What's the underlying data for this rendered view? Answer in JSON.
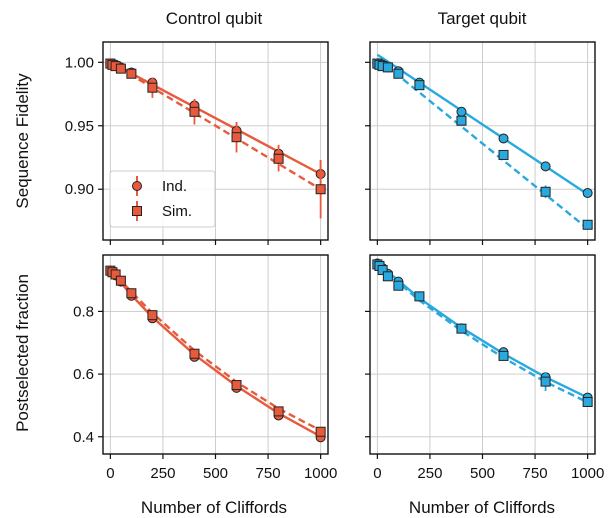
{
  "figure": {
    "col_titles": [
      "Control qubit",
      "Target qubit"
    ],
    "row_ylabels": [
      "Sequence Fidelity",
      "Postselected fraction"
    ],
    "xlabel": "Number of Cliffords",
    "legend": {
      "ind_label": "Ind.",
      "sim_label": "Sim."
    }
  },
  "chart_data": [
    {
      "type": "scatter",
      "panel": "top-left",
      "color": "#e85a3c",
      "xlim": [
        -35,
        1035
      ],
      "ylim": [
        0.86,
        1.016
      ],
      "xticks": [
        0,
        250,
        500,
        750,
        1000
      ],
      "yticks": [
        0.9,
        0.95,
        1.0
      ],
      "ytick_labels": [
        "0.90",
        "0.95",
        "1.00"
      ],
      "grid": true,
      "legend_position": "lower-left",
      "series": [
        {
          "key": "ind",
          "name": "Ind.",
          "marker": "circle",
          "line": "solid",
          "x": [
            0,
            10,
            25,
            50,
            100,
            200,
            400,
            600,
            800,
            1000
          ],
          "y": [
            0.999,
            0.999,
            0.998,
            0.996,
            0.992,
            0.984,
            0.966,
            0.946,
            0.928,
            0.912
          ],
          "err": [
            0.002,
            0.002,
            0.002,
            0.002,
            0.003,
            0.004,
            0.005,
            0.006,
            0.007,
            0.011
          ],
          "fit": [
            [
              0,
              1.0
            ],
            [
              1000,
              0.912
            ]
          ]
        },
        {
          "key": "sim",
          "name": "Sim.",
          "marker": "square",
          "line": "dashed",
          "x": [
            0,
            10,
            25,
            50,
            100,
            200,
            400,
            600,
            800,
            1000
          ],
          "y": [
            0.999,
            0.998,
            0.997,
            0.995,
            0.991,
            0.98,
            0.961,
            0.941,
            0.924,
            0.9
          ],
          "err": [
            0.002,
            0.002,
            0.002,
            0.003,
            0.003,
            0.008,
            0.01,
            0.012,
            0.01,
            0.023
          ],
          "fit": [
            [
              0,
              1.0
            ],
            [
              1000,
              0.9
            ]
          ]
        }
      ]
    },
    {
      "type": "scatter",
      "panel": "top-right",
      "color": "#29a9de",
      "xlim": [
        -35,
        1035
      ],
      "ylim": [
        0.86,
        1.016
      ],
      "xticks": [
        0,
        250,
        500,
        750,
        1000
      ],
      "yticks": [
        0.9,
        0.95,
        1.0
      ],
      "grid": true,
      "series": [
        {
          "key": "ind",
          "name": "Ind.",
          "marker": "circle",
          "line": "solid",
          "x": [
            0,
            10,
            25,
            50,
            100,
            200,
            400,
            600,
            800,
            1000
          ],
          "y": [
            0.999,
            0.999,
            0.998,
            0.996,
            0.993,
            0.984,
            0.961,
            0.94,
            0.918,
            0.897
          ],
          "err": [
            0.001,
            0.001,
            0.001,
            0.002,
            0.002,
            0.003,
            0.003,
            0.003,
            0.003,
            0.003
          ],
          "fit": [
            [
              0,
              1.006
            ],
            [
              1000,
              0.896
            ]
          ]
        },
        {
          "key": "sim",
          "name": "Sim.",
          "marker": "square",
          "line": "dashed",
          "x": [
            0,
            10,
            25,
            50,
            100,
            200,
            400,
            600,
            800,
            1000
          ],
          "y": [
            0.999,
            0.998,
            0.997,
            0.996,
            0.991,
            0.982,
            0.954,
            0.927,
            0.898,
            0.872
          ],
          "err": [
            0.001,
            0.001,
            0.001,
            0.002,
            0.002,
            0.003,
            0.003,
            0.003,
            0.005,
            0.003
          ],
          "fit": [
            [
              0,
              1.003
            ],
            [
              1000,
              0.869
            ]
          ]
        }
      ]
    },
    {
      "type": "scatter",
      "panel": "bottom-left",
      "color": "#e85a3c",
      "xlim": [
        -35,
        1035
      ],
      "ylim": [
        0.345,
        0.98
      ],
      "xticks": [
        0,
        250,
        500,
        750,
        1000
      ],
      "xtick_labels": [
        "0",
        "250",
        "500",
        "750",
        "1000"
      ],
      "yticks": [
        0.4,
        0.6,
        0.8
      ],
      "ytick_labels": [
        "0.4",
        "0.6",
        "0.8"
      ],
      "grid": true,
      "series": [
        {
          "key": "ind",
          "name": "Ind.",
          "marker": "circle",
          "line": "solid",
          "x": [
            0,
            10,
            25,
            50,
            100,
            200,
            400,
            600,
            800,
            1000
          ],
          "y": [
            0.93,
            0.925,
            0.915,
            0.895,
            0.85,
            0.778,
            0.655,
            0.556,
            0.468,
            0.398
          ],
          "err": [
            0.005,
            0.005,
            0.005,
            0.005,
            0.006,
            0.006,
            0.007,
            0.007,
            0.007,
            0.008
          ],
          "fit": [
            [
              0,
              0.932
            ],
            [
              100,
              0.852
            ],
            [
              200,
              0.782
            ],
            [
              400,
              0.662
            ],
            [
              600,
              0.562
            ],
            [
              800,
              0.475
            ],
            [
              1000,
              0.401
            ]
          ]
        },
        {
          "key": "sim",
          "name": "Sim.",
          "marker": "square",
          "line": "dashed",
          "x": [
            0,
            10,
            25,
            50,
            100,
            200,
            400,
            600,
            800,
            1000
          ],
          "y": [
            0.93,
            0.925,
            0.918,
            0.898,
            0.858,
            0.788,
            0.665,
            0.565,
            0.481,
            0.416
          ],
          "err": [
            0.005,
            0.005,
            0.005,
            0.005,
            0.006,
            0.006,
            0.007,
            0.007,
            0.007,
            0.008
          ],
          "fit": [
            [
              0,
              0.935
            ],
            [
              100,
              0.862
            ],
            [
              200,
              0.795
            ],
            [
              400,
              0.675
            ],
            [
              600,
              0.575
            ],
            [
              800,
              0.49
            ],
            [
              1000,
              0.42
            ]
          ]
        }
      ]
    },
    {
      "type": "scatter",
      "panel": "bottom-right",
      "color": "#29a9de",
      "xlim": [
        -35,
        1035
      ],
      "ylim": [
        0.345,
        0.98
      ],
      "xticks": [
        0,
        250,
        500,
        750,
        1000
      ],
      "xtick_labels": [
        "0",
        "250",
        "500",
        "750",
        "1000"
      ],
      "yticks": [
        0.4,
        0.6,
        0.8
      ],
      "grid": true,
      "series": [
        {
          "key": "ind",
          "name": "Ind.",
          "marker": "circle",
          "line": "solid",
          "x": [
            0,
            10,
            25,
            50,
            100,
            200,
            400,
            600,
            800,
            1000
          ],
          "y": [
            0.953,
            0.948,
            0.938,
            0.92,
            0.895,
            0.848,
            0.746,
            0.67,
            0.59,
            0.525
          ],
          "err": [
            0.005,
            0.005,
            0.005,
            0.005,
            0.005,
            0.006,
            0.006,
            0.007,
            0.007,
            0.008
          ],
          "fit": [
            [
              0,
              0.955
            ],
            [
              100,
              0.898
            ],
            [
              200,
              0.842
            ],
            [
              400,
              0.748
            ],
            [
              600,
              0.665
            ],
            [
              800,
              0.59
            ],
            [
              1000,
              0.525
            ]
          ]
        },
        {
          "key": "sim",
          "name": "Sim.",
          "marker": "square",
          "line": "dashed",
          "x": [
            0,
            10,
            25,
            50,
            100,
            200,
            400,
            600,
            800,
            1000
          ],
          "y": [
            0.95,
            0.945,
            0.932,
            0.912,
            0.882,
            0.848,
            0.745,
            0.658,
            0.576,
            0.511
          ],
          "err": [
            0.005,
            0.005,
            0.005,
            0.005,
            0.006,
            0.006,
            0.007,
            0.008,
            0.03,
            0.008
          ],
          "fit": [
            [
              0,
              0.953
            ],
            [
              100,
              0.892
            ],
            [
              200,
              0.835
            ],
            [
              400,
              0.738
            ],
            [
              600,
              0.652
            ],
            [
              800,
              0.575
            ],
            [
              1000,
              0.51
            ]
          ]
        }
      ]
    }
  ]
}
